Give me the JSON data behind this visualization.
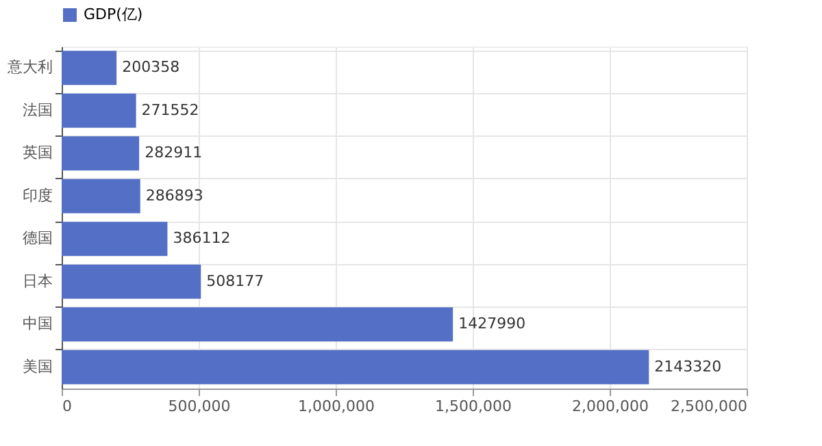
{
  "chart_data": {
    "type": "bar",
    "orientation": "horizontal",
    "categories": [
      "意大利",
      "法国",
      "英国",
      "印度",
      "德国",
      "日本",
      "中国",
      "美国"
    ],
    "series": [
      {
        "name": "GDP(亿)",
        "color": "#5470c6",
        "values": [
          200358,
          271552,
          282911,
          286893,
          386112,
          508177,
          1427990,
          2143320
        ]
      }
    ],
    "xlim": [
      0,
      2500000
    ],
    "xticks": [
      {
        "value": 0,
        "label": "0"
      },
      {
        "value": 500000,
        "label": "500,000"
      },
      {
        "value": 1000000,
        "label": "1,000,000"
      },
      {
        "value": 1500000,
        "label": "1,500,000"
      },
      {
        "value": 2000000,
        "label": "2,000,000"
      },
      {
        "value": 2500000,
        "label": "2,500,000"
      }
    ],
    "data_labels": true,
    "grid": true,
    "legend": "top"
  }
}
